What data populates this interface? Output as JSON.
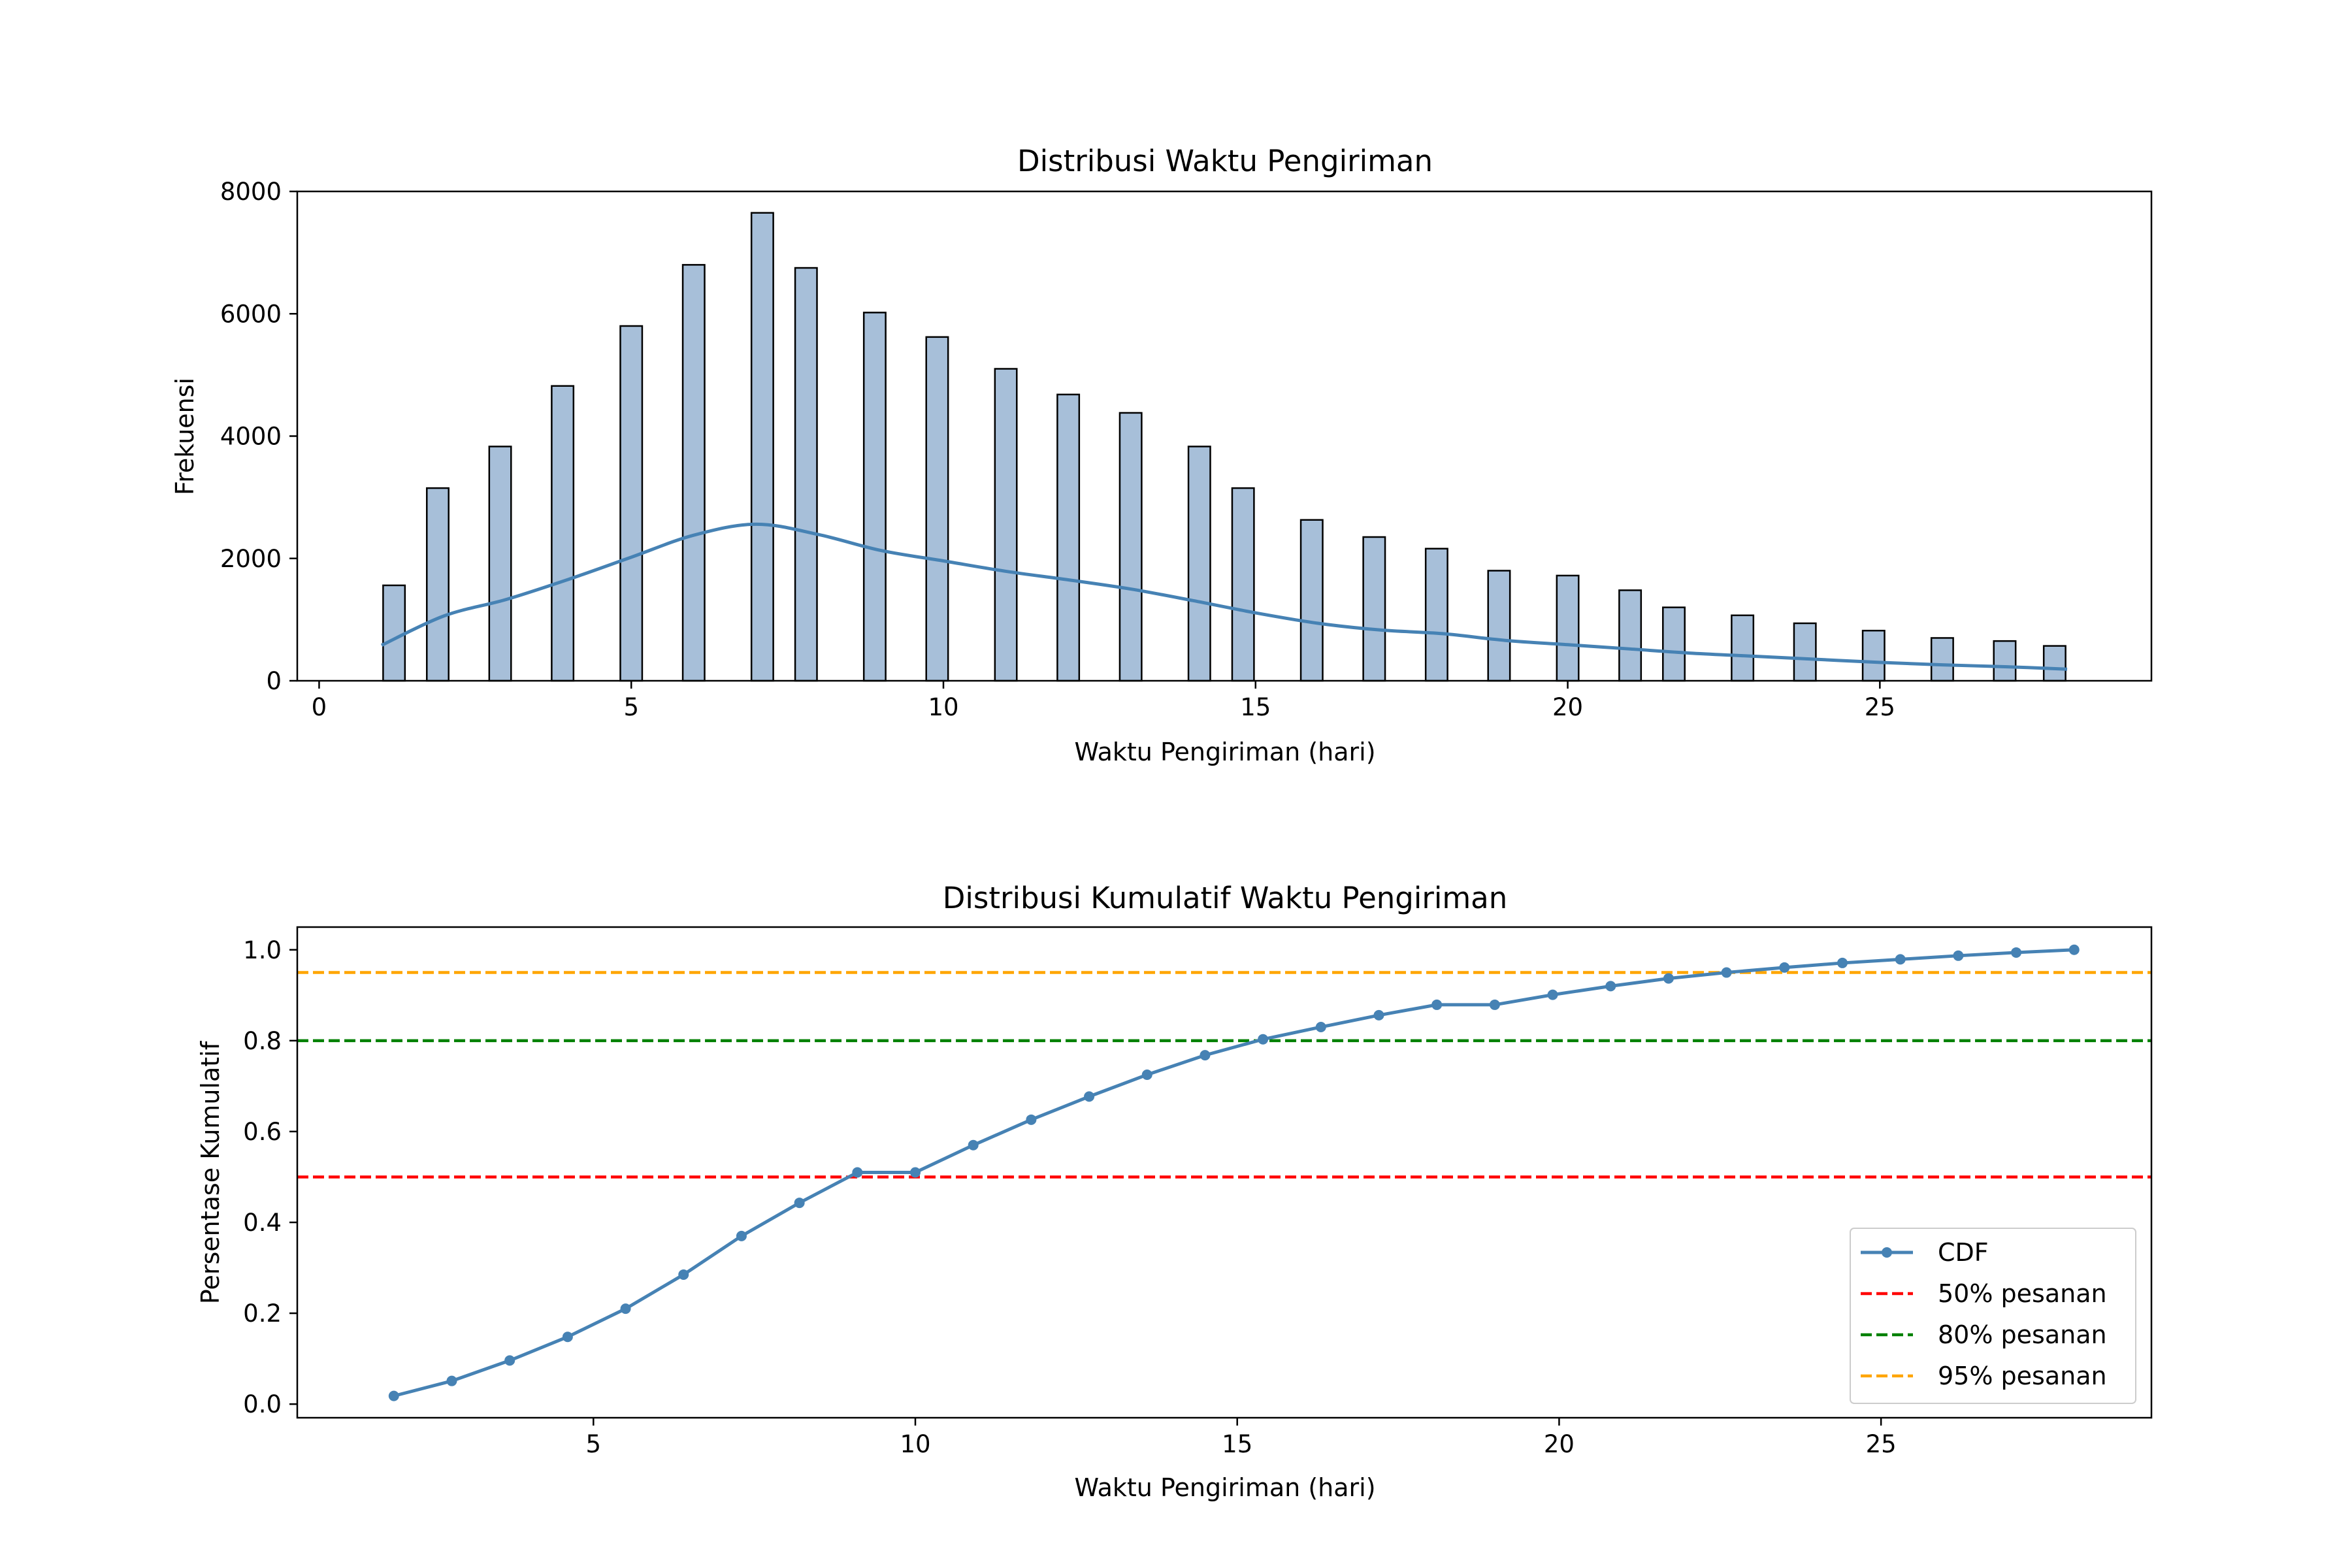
{
  "chart_data": [
    {
      "type": "bar",
      "title": "Distribusi Waktu Pengiriman",
      "xlabel": "Waktu Pengiriman (hari)",
      "ylabel": "Frekuensi",
      "xlim": [
        -0.35,
        29.35
      ],
      "ylim": [
        0,
        8000
      ],
      "xticks": [
        0,
        5,
        10,
        15,
        20,
        25
      ],
      "yticks": [
        0,
        2000,
        4000,
        6000,
        8000
      ],
      "grid": false,
      "bar_color": "#a7bfd9",
      "bar_edge_color": "#000000",
      "kde_color": "#4682b4",
      "bin_width": 0.35,
      "bars": {
        "x": [
          1.2,
          1.9,
          2.9,
          3.9,
          5.0,
          6.0,
          7.1,
          7.8,
          8.9,
          9.9,
          11.0,
          12.0,
          13.0,
          14.1,
          14.8,
          15.9,
          16.9,
          17.9,
          18.9,
          20.0,
          21.0,
          21.7,
          22.8,
          23.8,
          24.9,
          26.0,
          27.0,
          27.8
        ],
        "values": [
          1560,
          3150,
          3830,
          4820,
          5800,
          6800,
          7650,
          6750,
          6020,
          5620,
          5100,
          4680,
          4380,
          3830,
          3150,
          2630,
          2350,
          2160,
          1800,
          1720,
          1480,
          1200,
          1070,
          940,
          820,
          700,
          650,
          570
        ]
      },
      "kde": {
        "x": [
          1.0,
          2.0,
          3.0,
          4.0,
          5.0,
          6.0,
          7.0,
          8.0,
          9.0,
          10.0,
          11.0,
          12.0,
          13.0,
          14.0,
          15.0,
          16.0,
          17.0,
          18.0,
          19.0,
          20.0,
          21.0,
          22.0,
          23.0,
          24.0,
          25.0,
          26.0,
          27.0,
          28.0
        ],
        "values": [
          580,
          1060,
          1330,
          1660,
          2020,
          2380,
          2560,
          2390,
          2130,
          1960,
          1790,
          1650,
          1500,
          1310,
          1110,
          940,
          830,
          770,
          660,
          590,
          520,
          450,
          400,
          350,
          300,
          260,
          230,
          190
        ]
      }
    },
    {
      "type": "line",
      "title": "Distribusi Kumulatif Waktu Pengiriman",
      "xlabel": "Waktu Pengiriman (hari)",
      "ylabel": "Persentase Kumulatif",
      "xlim": [
        0.4,
        29.2
      ],
      "ylim": [
        -0.03,
        1.05
      ],
      "xticks": [
        5,
        10,
        15,
        20,
        25
      ],
      "yticks": [
        "0.0",
        "0.2",
        "0.4",
        "0.6",
        "0.8",
        "1.0"
      ],
      "grid": false,
      "legend_position": "lower-right",
      "series": [
        {
          "name": "CDF",
          "color": "#4682b4",
          "marker": "circle",
          "x": [
            1.9,
            2.8,
            3.7,
            4.6,
            5.5,
            6.4,
            7.3,
            8.2,
            9.1,
            10.0,
            10.9,
            11.8,
            12.7,
            13.6,
            14.5,
            15.4,
            16.3,
            17.2,
            18.1,
            19.0,
            19.9,
            20.8,
            21.7,
            22.6,
            23.5,
            24.4,
            25.3,
            26.2,
            27.1,
            28.0
          ],
          "values": [
            0.018,
            0.051,
            0.096,
            0.148,
            0.21,
            0.285,
            0.37,
            0.443,
            0.51,
            0.51,
            0.57,
            0.626,
            0.677,
            0.725,
            0.768,
            0.803,
            0.83,
            0.856,
            0.879,
            0.879,
            0.901,
            0.92,
            0.937,
            0.95,
            0.961,
            0.971,
            0.979,
            0.987,
            0.994,
            1.0
          ]
        }
      ],
      "reference_lines": [
        {
          "name": "50% pesanan",
          "y": 0.5,
          "color": "#ff0000",
          "style": "dashed"
        },
        {
          "name": "80% pesanan",
          "y": 0.8,
          "color": "#008000",
          "style": "dashed"
        },
        {
          "name": "95% pesanan",
          "y": 0.95,
          "color": "#ffa500",
          "style": "dashed"
        }
      ]
    }
  ]
}
